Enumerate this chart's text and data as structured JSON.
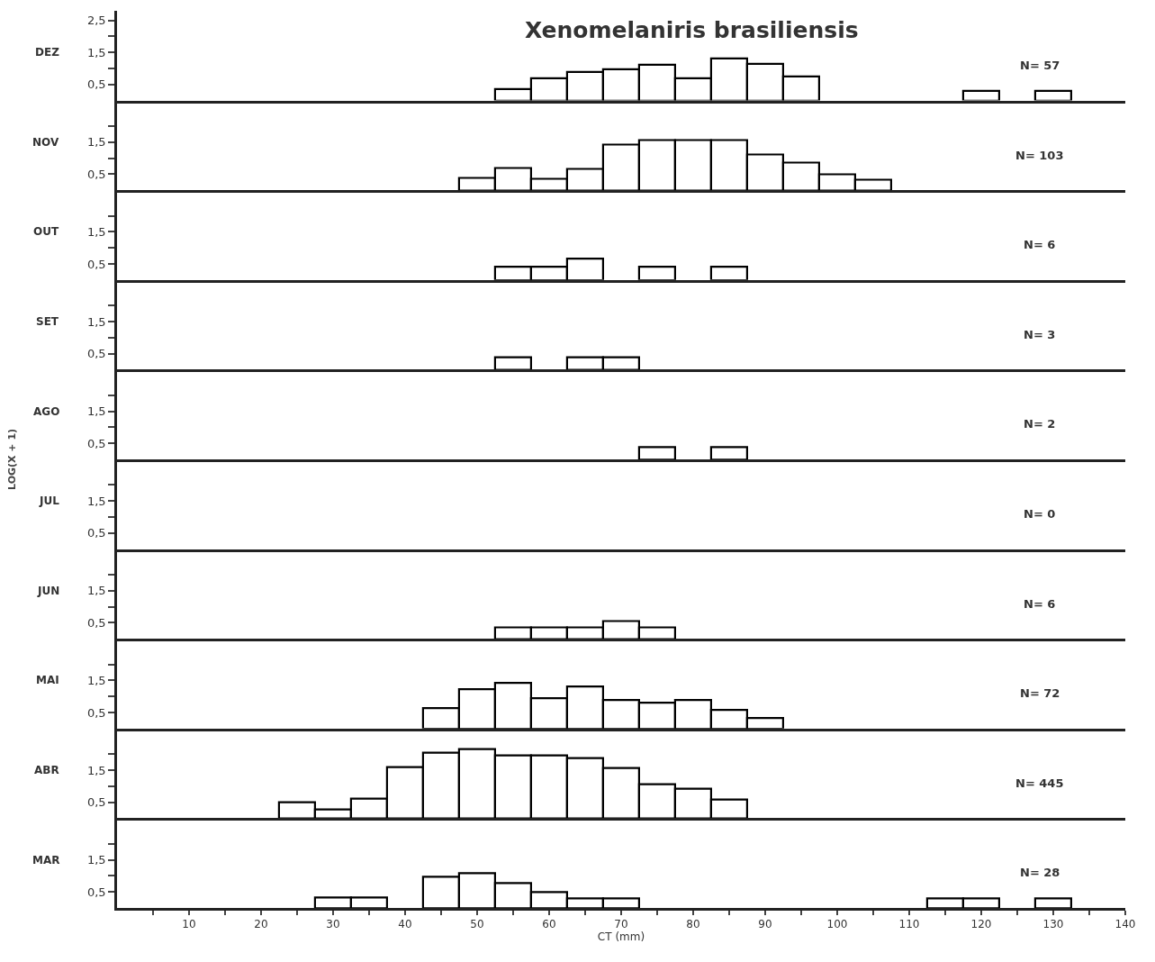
{
  "chart_data": [
    {
      "type": "histogram",
      "title": "Xenomelaniris brasiliensis",
      "ylabel": "DEZ",
      "annotations": [
        "N= 57"
      ],
      "color": "#000000",
      "xlim": [
        0,
        140
      ],
      "ylim": [
        0,
        2.8
      ],
      "yticks": [
        {
          "value": 0.5,
          "label": "0,5"
        },
        {
          "value": 1,
          "label": null
        },
        {
          "value": 1.5,
          "label": "1,5"
        },
        {
          "value": 2,
          "label": null
        },
        {
          "value": 2.5,
          "label": "2,5"
        }
      ],
      "tick_labels": "y",
      "bins": [
        22.5,
        27.5,
        32.5,
        37.5,
        42.5,
        47.5,
        52.5,
        57.5,
        62.5,
        67.5,
        72.5,
        77.5,
        82.5,
        87.5,
        92.5,
        97.5,
        102.5,
        107.5,
        112.5,
        117.5,
        122.5,
        127.5,
        132.5
      ],
      "values": [
        0,
        0,
        0,
        0,
        0,
        0,
        0.36,
        0.69,
        0.9,
        0.96,
        1.12,
        0.68,
        1.32,
        1.15,
        0.76,
        0,
        0,
        0,
        0,
        0.3,
        0,
        0.3
      ]
    },
    {
      "type": "histogram",
      "ylabel": "NOV",
      "annotations": [
        "N= 103"
      ],
      "color": "#000000",
      "xlim": [
        0,
        140
      ],
      "ylim": [
        0,
        2.8
      ],
      "yticks": [
        {
          "value": 0.5,
          "label": "0,5"
        },
        {
          "value": 1,
          "label": null
        },
        {
          "value": 1.5,
          "label": "1,5"
        },
        {
          "value": 2,
          "label": null
        }
      ],
      "tick_labels": "y",
      "bins": [
        22.5,
        27.5,
        32.5,
        37.5,
        42.5,
        47.5,
        52.5,
        57.5,
        62.5,
        67.5,
        72.5,
        77.5,
        82.5,
        87.5,
        92.5,
        97.5,
        102.5,
        107.5,
        112.5,
        117.5,
        122.5,
        127.5,
        132.5
      ],
      "values": [
        0,
        0,
        0,
        0,
        0,
        0.37,
        0.68,
        0.36,
        0.65,
        1.42,
        1.55,
        1.55,
        1.55,
        1.1,
        0.87,
        0.5,
        0.32,
        0,
        0,
        0,
        0,
        0
      ]
    },
    {
      "type": "histogram",
      "ylabel": "OUT",
      "annotations": [
        "N= 6"
      ],
      "color": "#000000",
      "xlim": [
        0,
        140
      ],
      "ylim": [
        0,
        2.8
      ],
      "yticks": [
        {
          "value": 0.5,
          "label": "0,5"
        },
        {
          "value": 1,
          "label": null
        },
        {
          "value": 1.5,
          "label": "1,5"
        },
        {
          "value": 2,
          "label": null
        }
      ],
      "tick_labels": "y",
      "bins": [
        22.5,
        27.5,
        32.5,
        37.5,
        42.5,
        47.5,
        52.5,
        57.5,
        62.5,
        67.5,
        72.5,
        77.5,
        82.5,
        87.5,
        92.5,
        97.5,
        102.5,
        107.5,
        112.5,
        117.5,
        122.5,
        127.5,
        132.5
      ],
      "values": [
        0,
        0,
        0,
        0,
        0,
        0,
        0.4,
        0.4,
        0.65,
        0,
        0.4,
        0,
        0.4,
        0,
        0,
        0,
        0,
        0,
        0,
        0,
        0,
        0
      ]
    },
    {
      "type": "histogram",
      "ylabel": "SET",
      "annotations": [
        "N= 3"
      ],
      "color": "#000000",
      "xlim": [
        0,
        140
      ],
      "ylim": [
        0,
        2.8
      ],
      "yticks": [
        {
          "value": 0.5,
          "label": "0,5"
        },
        {
          "value": 1,
          "label": null
        },
        {
          "value": 1.5,
          "label": "1,5"
        },
        {
          "value": 2,
          "label": null
        }
      ],
      "tick_labels": "y",
      "bins": [
        22.5,
        27.5,
        32.5,
        37.5,
        42.5,
        47.5,
        52.5,
        57.5,
        62.5,
        67.5,
        72.5,
        77.5,
        82.5,
        87.5,
        92.5,
        97.5,
        102.5,
        107.5,
        112.5,
        117.5,
        122.5,
        127.5,
        132.5
      ],
      "values": [
        0,
        0,
        0,
        0,
        0,
        0,
        0.38,
        0,
        0.38,
        0.38,
        0,
        0,
        0,
        0,
        0,
        0,
        0,
        0,
        0,
        0,
        0,
        0
      ]
    },
    {
      "type": "histogram",
      "ylabel": "AGO",
      "annotations": [
        "N= 2",
        "LOG(X + 1)"
      ],
      "color": "#000000",
      "xlim": [
        0,
        140
      ],
      "ylim": [
        0,
        2.8
      ],
      "yticks": [
        {
          "value": 0.5,
          "label": "0,5"
        },
        {
          "value": 1,
          "label": null
        },
        {
          "value": 1.5,
          "label": "1,5"
        },
        {
          "value": 2,
          "label": null
        }
      ],
      "tick_labels": "y",
      "bins": [
        22.5,
        27.5,
        32.5,
        37.5,
        42.5,
        47.5,
        52.5,
        57.5,
        62.5,
        67.5,
        72.5,
        77.5,
        82.5,
        87.5,
        92.5,
        97.5,
        102.5,
        107.5,
        112.5,
        117.5,
        122.5,
        127.5,
        132.5
      ],
      "values": [
        0,
        0,
        0,
        0,
        0,
        0,
        0,
        0,
        0,
        0,
        0.38,
        0,
        0.38,
        0,
        0,
        0,
        0,
        0,
        0,
        0,
        0,
        0
      ]
    },
    {
      "type": "histogram",
      "ylabel": "JUL",
      "annotations": [
        "N= 0"
      ],
      "xlim": [
        0,
        140
      ],
      "ylim": [
        0,
        2.8
      ],
      "yticks": [
        {
          "value": 0.5,
          "label": "0,5"
        },
        {
          "value": 1,
          "label": null
        },
        {
          "value": 1.5,
          "label": "1,5"
        },
        {
          "value": 2,
          "label": null
        }
      ],
      "tick_labels": "y"
    },
    {
      "type": "histogram",
      "ylabel": "JUN",
      "annotations": [
        "N= 6"
      ],
      "color": "#000000",
      "xlim": [
        0,
        140
      ],
      "ylim": [
        0,
        2.8
      ],
      "yticks": [
        {
          "value": 0.5,
          "label": "0,5"
        },
        {
          "value": 1,
          "label": null
        },
        {
          "value": 1.5,
          "label": "1,5"
        },
        {
          "value": 2,
          "label": null
        }
      ],
      "tick_labels": "y",
      "bins": [
        22.5,
        27.5,
        32.5,
        37.5,
        42.5,
        47.5,
        52.5,
        57.5,
        62.5,
        67.5,
        72.5,
        77.5,
        82.5,
        87.5,
        92.5,
        97.5,
        102.5,
        107.5,
        112.5,
        117.5,
        122.5,
        127.5,
        132.5
      ],
      "values": [
        0,
        0,
        0,
        0,
        0,
        0,
        0.35,
        0.35,
        0.35,
        0.56,
        0.35,
        0,
        0,
        0,
        0,
        0,
        0,
        0,
        0,
        0,
        0,
        0
      ]
    },
    {
      "type": "histogram",
      "ylabel": "MAI",
      "annotations": [
        "N= 72"
      ],
      "color": "#000000",
      "xlim": [
        0,
        140
      ],
      "ylim": [
        0,
        2.8
      ],
      "yticks": [
        {
          "value": 0.5,
          "label": "0,5"
        },
        {
          "value": 1,
          "label": null
        },
        {
          "value": 1.5,
          "label": "1,5"
        },
        {
          "value": 2,
          "label": null
        }
      ],
      "tick_labels": "y",
      "bins": [
        22.5,
        27.5,
        32.5,
        37.5,
        42.5,
        47.5,
        52.5,
        57.5,
        62.5,
        67.5,
        72.5,
        77.5,
        82.5,
        87.5,
        92.5,
        97.5,
        102.5,
        107.5,
        112.5,
        117.5,
        122.5,
        127.5,
        132.5
      ],
      "values": [
        0,
        0,
        0,
        0,
        0.64,
        1.23,
        1.43,
        0.95,
        1.32,
        0.89,
        0.8,
        0.89,
        0.57,
        0.34,
        0,
        0,
        0,
        0,
        0,
        0,
        0,
        0
      ]
    },
    {
      "type": "histogram",
      "ylabel": "ABR",
      "annotations": [
        "N= 445"
      ],
      "color": "#000000",
      "xlim": [
        0,
        140
      ],
      "ylim": [
        0,
        2.8
      ],
      "yticks": [
        {
          "value": 0.5,
          "label": "0,5"
        },
        {
          "value": 1,
          "label": null
        },
        {
          "value": 1.5,
          "label": "1,5"
        },
        {
          "value": 2,
          "label": null
        }
      ],
      "tick_labels": "y",
      "bins": [
        22.5,
        27.5,
        32.5,
        37.5,
        42.5,
        47.5,
        52.5,
        57.5,
        62.5,
        67.5,
        72.5,
        77.5,
        82.5,
        87.5,
        92.5,
        97.5,
        102.5,
        107.5,
        112.5,
        117.5,
        122.5,
        127.5,
        132.5
      ],
      "values": [
        0.5,
        0.27,
        0.61,
        1.59,
        2.05,
        2.14,
        1.95,
        1.95,
        1.86,
        1.57,
        1.05,
        0.91,
        0.59,
        0,
        0,
        0,
        0,
        0,
        0,
        0,
        0,
        0
      ]
    },
    {
      "type": "histogram",
      "ylabel": "MAR",
      "xlabel": "CT (mm)",
      "annotations": [
        "N= 28"
      ],
      "color": "#000000",
      "xlim": [
        0,
        140
      ],
      "ylim": [
        0,
        2.8
      ],
      "yticks": [
        {
          "value": 0.5,
          "label": "0,5"
        },
        {
          "value": 1,
          "label": null
        },
        {
          "value": 1.5,
          "label": "1,5"
        },
        {
          "value": 2,
          "label": null
        }
      ],
      "xticks": [
        {
          "value": 5,
          "label": null
        },
        10,
        {
          "value": 15,
          "label": null
        },
        20,
        {
          "value": 25,
          "label": null
        },
        30,
        {
          "value": 35,
          "label": null
        },
        40,
        {
          "value": 45,
          "label": null
        },
        50,
        {
          "value": 55,
          "label": null
        },
        60,
        {
          "value": 65,
          "label": null
        },
        70,
        {
          "value": 75,
          "label": null
        },
        80,
        {
          "value": 85,
          "label": null
        },
        90,
        {
          "value": 95,
          "label": null
        },
        100,
        {
          "value": 105,
          "label": null
        },
        110,
        {
          "value": 115,
          "label": null
        },
        120,
        {
          "value": 125,
          "label": null
        },
        130,
        {
          "value": 135,
          "label": null
        },
        140
      ],
      "bins": [
        22.5,
        27.5,
        32.5,
        37.5,
        42.5,
        47.5,
        52.5,
        57.5,
        62.5,
        67.5,
        72.5,
        77.5,
        82.5,
        87.5,
        92.5,
        97.5,
        102.5,
        107.5,
        112.5,
        117.5,
        122.5,
        127.5,
        132.5
      ],
      "values": [
        0,
        0.32,
        0.32,
        0,
        0.98,
        1.09,
        0.77,
        0.5,
        0.3,
        0.3,
        0,
        0,
        0,
        0,
        0,
        0,
        0,
        0,
        0.3,
        0.3,
        0,
        0.3
      ]
    }
  ]
}
